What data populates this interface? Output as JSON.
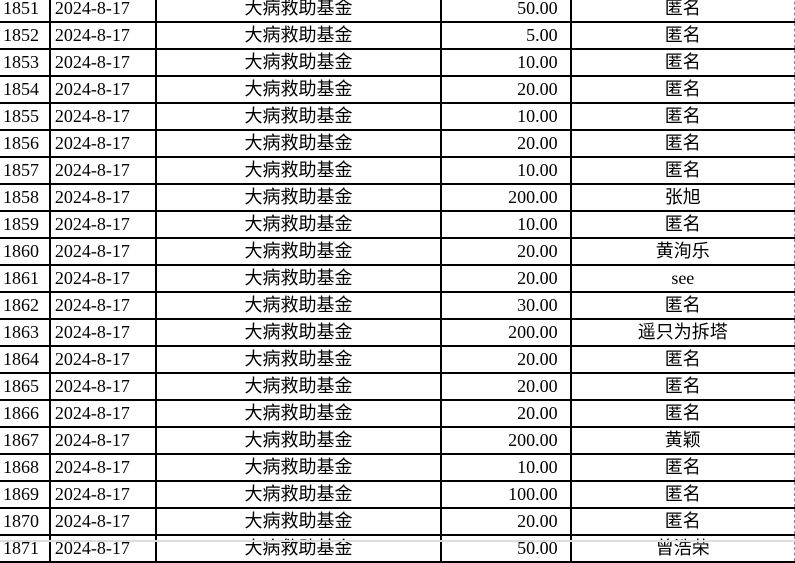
{
  "rows": [
    {
      "id": "1851",
      "date": "2024-8-17",
      "fund": "大病救助基金",
      "amount": "50.00",
      "name": "匿名"
    },
    {
      "id": "1852",
      "date": "2024-8-17",
      "fund": "大病救助基金",
      "amount": "5.00",
      "name": "匿名"
    },
    {
      "id": "1853",
      "date": "2024-8-17",
      "fund": "大病救助基金",
      "amount": "10.00",
      "name": "匿名"
    },
    {
      "id": "1854",
      "date": "2024-8-17",
      "fund": "大病救助基金",
      "amount": "20.00",
      "name": "匿名"
    },
    {
      "id": "1855",
      "date": "2024-8-17",
      "fund": "大病救助基金",
      "amount": "10.00",
      "name": "匿名"
    },
    {
      "id": "1856",
      "date": "2024-8-17",
      "fund": "大病救助基金",
      "amount": "20.00",
      "name": "匿名"
    },
    {
      "id": "1857",
      "date": "2024-8-17",
      "fund": "大病救助基金",
      "amount": "10.00",
      "name": "匿名"
    },
    {
      "id": "1858",
      "date": "2024-8-17",
      "fund": "大病救助基金",
      "amount": "200.00",
      "name": "张旭"
    },
    {
      "id": "1859",
      "date": "2024-8-17",
      "fund": "大病救助基金",
      "amount": "10.00",
      "name": "匿名"
    },
    {
      "id": "1860",
      "date": "2024-8-17",
      "fund": "大病救助基金",
      "amount": "20.00",
      "name": "黄洵乐"
    },
    {
      "id": "1861",
      "date": "2024-8-17",
      "fund": "大病救助基金",
      "amount": "20.00",
      "name": "see"
    },
    {
      "id": "1862",
      "date": "2024-8-17",
      "fund": "大病救助基金",
      "amount": "30.00",
      "name": "匿名"
    },
    {
      "id": "1863",
      "date": "2024-8-17",
      "fund": "大病救助基金",
      "amount": "200.00",
      "name": "遥只为拆塔"
    },
    {
      "id": "1864",
      "date": "2024-8-17",
      "fund": "大病救助基金",
      "amount": "20.00",
      "name": "匿名"
    },
    {
      "id": "1865",
      "date": "2024-8-17",
      "fund": "大病救助基金",
      "amount": "20.00",
      "name": "匿名"
    },
    {
      "id": "1866",
      "date": "2024-8-17",
      "fund": "大病救助基金",
      "amount": "20.00",
      "name": "匿名"
    },
    {
      "id": "1867",
      "date": "2024-8-17",
      "fund": "大病救助基金",
      "amount": "200.00",
      "name": "黄颖"
    },
    {
      "id": "1868",
      "date": "2024-8-17",
      "fund": "大病救助基金",
      "amount": "10.00",
      "name": "匿名"
    },
    {
      "id": "1869",
      "date": "2024-8-17",
      "fund": "大病救助基金",
      "amount": "100.00",
      "name": "匿名"
    },
    {
      "id": "1870",
      "date": "2024-8-17",
      "fund": "大病救助基金",
      "amount": "20.00",
      "name": "匿名"
    },
    {
      "id": "1871",
      "date": "2024-8-17",
      "fund": "大病救助基金",
      "amount": "50.00",
      "name": "曾浩荣"
    }
  ]
}
